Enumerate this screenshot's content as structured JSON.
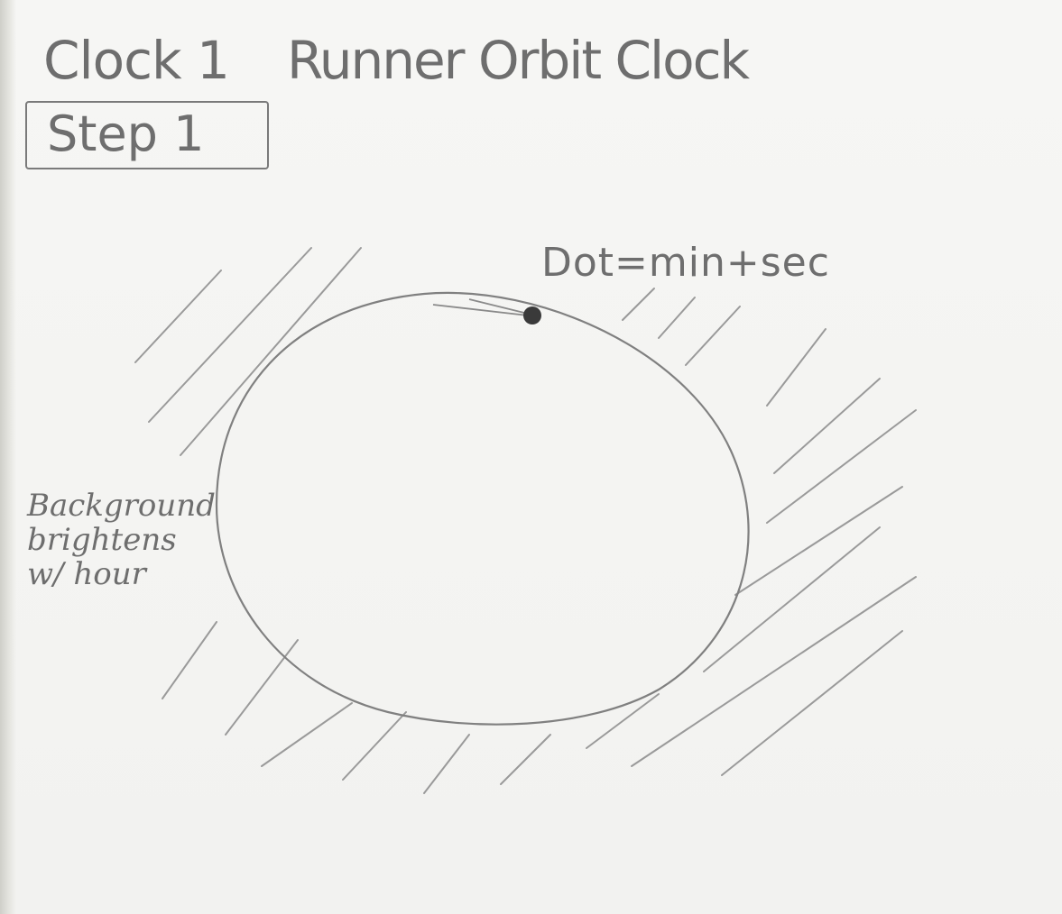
{
  "sketch": {
    "title_prefix": "Clock 1",
    "title_name": "Runner Orbit Clock",
    "step_label": "Step 1",
    "dot_annotation": "Dot=min+sec",
    "background_note": [
      "Background",
      "brightens",
      "w/ hour"
    ]
  },
  "icons": [
    "orbit-ring",
    "runner-dot"
  ],
  "colors": {
    "pencil": "#6e6e6e",
    "paper": "#f4f4f2",
    "dot": "#3a3a3a"
  }
}
